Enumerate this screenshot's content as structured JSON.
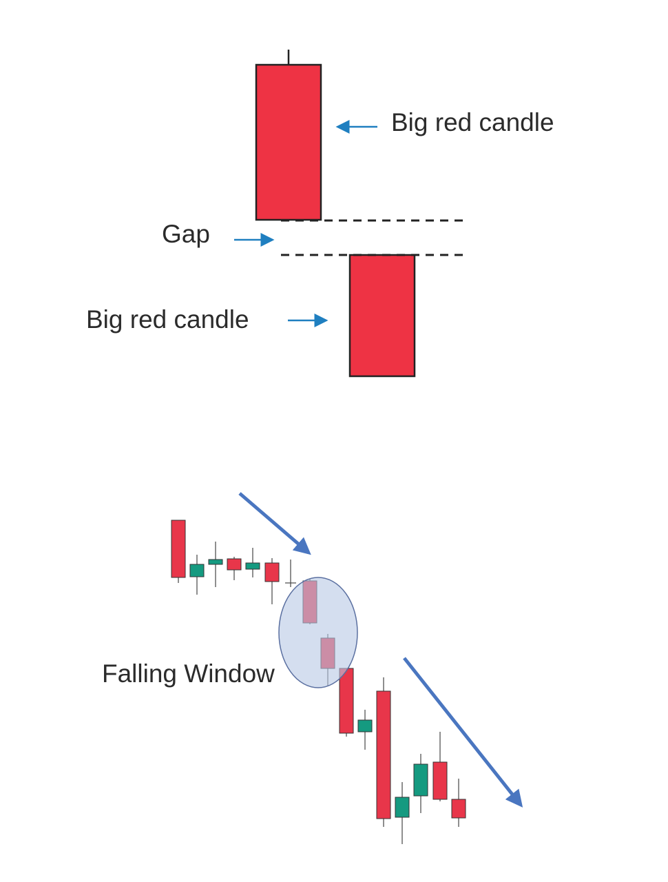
{
  "top": {
    "upper_label": "Big red candle",
    "gap_label": "Gap",
    "lower_label": "Big red candle"
  },
  "bottom": {
    "label": "Falling Window"
  }
}
